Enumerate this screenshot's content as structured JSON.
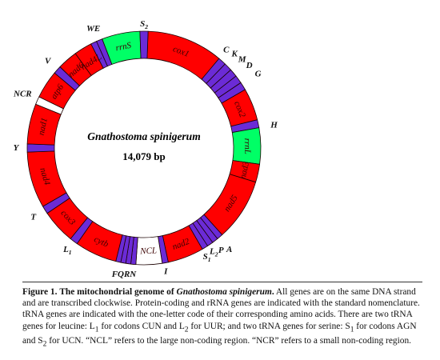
{
  "genome": {
    "name": "Gnathostoma spinigerum",
    "size": "14,079 bp"
  },
  "segments": [
    {
      "id": "cox1",
      "label": "cox1",
      "kind": "gene",
      "color": "#ff0000"
    },
    {
      "id": "C",
      "label": "",
      "kind": "trna",
      "color": "#6b2bd6"
    },
    {
      "id": "K",
      "label": "",
      "kind": "trna",
      "color": "#6b2bd6"
    },
    {
      "id": "M",
      "label": "",
      "kind": "trna",
      "color": "#6b2bd6"
    },
    {
      "id": "D",
      "label": "",
      "kind": "trna",
      "color": "#6b2bd6"
    },
    {
      "id": "G",
      "label": "",
      "kind": "trna",
      "color": "#6b2bd6"
    },
    {
      "id": "cox2",
      "label": "cox2",
      "kind": "gene",
      "color": "#ff0000"
    },
    {
      "id": "H",
      "label": "",
      "kind": "trna",
      "color": "#6b2bd6"
    },
    {
      "id": "rrnL",
      "label": "rrnL",
      "kind": "rrna",
      "color": "#00ff66"
    },
    {
      "id": "nad3",
      "label": "nad3",
      "kind": "gene",
      "color": "#ff0000"
    },
    {
      "id": "nad5",
      "label": "nad5",
      "kind": "gene",
      "color": "#ff0000"
    },
    {
      "id": "A",
      "label": "",
      "kind": "trna",
      "color": "#6b2bd6"
    },
    {
      "id": "P",
      "label": "",
      "kind": "trna",
      "color": "#6b2bd6"
    },
    {
      "id": "L2",
      "label": "",
      "kind": "trna",
      "color": "#6b2bd6"
    },
    {
      "id": "S1",
      "label": "",
      "kind": "trna",
      "color": "#6b2bd6"
    },
    {
      "id": "nad2",
      "label": "nad2",
      "kind": "gene",
      "color": "#ff0000"
    },
    {
      "id": "I",
      "label": "",
      "kind": "trna",
      "color": "#6b2bd6"
    },
    {
      "id": "NCL",
      "label": "NCL",
      "kind": "nc",
      "color": "#ffffff"
    },
    {
      "id": "N",
      "label": "",
      "kind": "trna",
      "color": "#6b2bd6"
    },
    {
      "id": "R",
      "label": "",
      "kind": "trna",
      "color": "#6b2bd6"
    },
    {
      "id": "Q",
      "label": "",
      "kind": "trna",
      "color": "#6b2bd6"
    },
    {
      "id": "F",
      "label": "",
      "kind": "trna",
      "color": "#6b2bd6"
    },
    {
      "id": "cytb",
      "label": "cytb",
      "kind": "gene",
      "color": "#ff0000"
    },
    {
      "id": "L1",
      "label": "",
      "kind": "trna",
      "color": "#6b2bd6"
    },
    {
      "id": "cox3",
      "label": "cox3",
      "kind": "gene",
      "color": "#ff0000"
    },
    {
      "id": "T",
      "label": "",
      "kind": "trna",
      "color": "#6b2bd6"
    },
    {
      "id": "nad4",
      "label": "nad4",
      "kind": "gene",
      "color": "#ff0000"
    },
    {
      "id": "Y",
      "label": "",
      "kind": "trna",
      "color": "#6b2bd6"
    },
    {
      "id": "nad1",
      "label": "nad1",
      "kind": "gene",
      "color": "#ff0000"
    },
    {
      "id": "NCR",
      "label": "",
      "kind": "nc",
      "color": "#ffffff"
    },
    {
      "id": "atp6",
      "label": "atp6",
      "kind": "gene",
      "color": "#ff0000"
    },
    {
      "id": "V",
      "label": "",
      "kind": "trna",
      "color": "#6b2bd6"
    },
    {
      "id": "nad6",
      "label": "nad6",
      "kind": "gene",
      "color": "#ff0000"
    },
    {
      "id": "nad4L",
      "label": "nad4L",
      "kind": "gene",
      "color": "#ff0000"
    },
    {
      "id": "W",
      "label": "",
      "kind": "trna",
      "color": "#6b2bd6"
    },
    {
      "id": "E",
      "label": "",
      "kind": "trna",
      "color": "#6b2bd6"
    },
    {
      "id": "rrnS",
      "label": "rrnS",
      "kind": "rrna",
      "color": "#00ff66"
    },
    {
      "id": "S2",
      "label": "",
      "kind": "trna",
      "color": "#6b2bd6"
    }
  ],
  "outer_labels": [
    {
      "id": "S2",
      "text": "S",
      "sub": "2"
    },
    {
      "id": "C",
      "text": "C",
      "sub": ""
    },
    {
      "id": "K",
      "text": "K",
      "sub": ""
    },
    {
      "id": "M",
      "text": "M",
      "sub": ""
    },
    {
      "id": "D",
      "text": "D",
      "sub": ""
    },
    {
      "id": "G",
      "text": "G",
      "sub": ""
    },
    {
      "id": "H",
      "text": "H",
      "sub": ""
    },
    {
      "id": "A",
      "text": "A",
      "sub": ""
    },
    {
      "id": "P",
      "text": "P",
      "sub": ""
    },
    {
      "id": "L2",
      "text": "L",
      "sub": "2"
    },
    {
      "id": "S1",
      "text": "S",
      "sub": "1"
    },
    {
      "id": "I",
      "text": "I",
      "sub": ""
    },
    {
      "id": "FQRN",
      "text": "FQRN",
      "sub": ""
    },
    {
      "id": "L1",
      "text": "L",
      "sub": "1"
    },
    {
      "id": "T",
      "text": "T",
      "sub": ""
    },
    {
      "id": "Y",
      "text": "Y",
      "sub": ""
    },
    {
      "id": "NCR",
      "text": "NCR",
      "sub": ""
    },
    {
      "id": "V",
      "text": "V",
      "sub": ""
    },
    {
      "id": "WE",
      "text": "WE",
      "sub": ""
    }
  ],
  "caption": {
    "figure_label": "Figure 1.",
    "title_prefix": "The mitochondrial genome of ",
    "title_species": "Gnathostoma spinigerum",
    "title_suffix": ".",
    "sentence_1": " All genes are on the same DNA strand and are transcribed clockwise. Protein-coding and rRNA genes are indicated with the standard nomenclature. tRNA genes are indicated with the one-letter code of their corresponding amino acids. There are two tRNA genes for leucine: L",
    "l1_sub": "1",
    "sentence_2": " for codons CUN and L",
    "l2_sub": "2",
    "sentence_3": " for UUR; and two tRNA genes for serine: S",
    "s1_sub": "1",
    "sentence_4": " for codons AGN and S",
    "s2_sub": "2",
    "sentence_5": " for UCN. “NCL” refers to the large non-coding region. “NCR” refers to a small non-coding region."
  }
}
